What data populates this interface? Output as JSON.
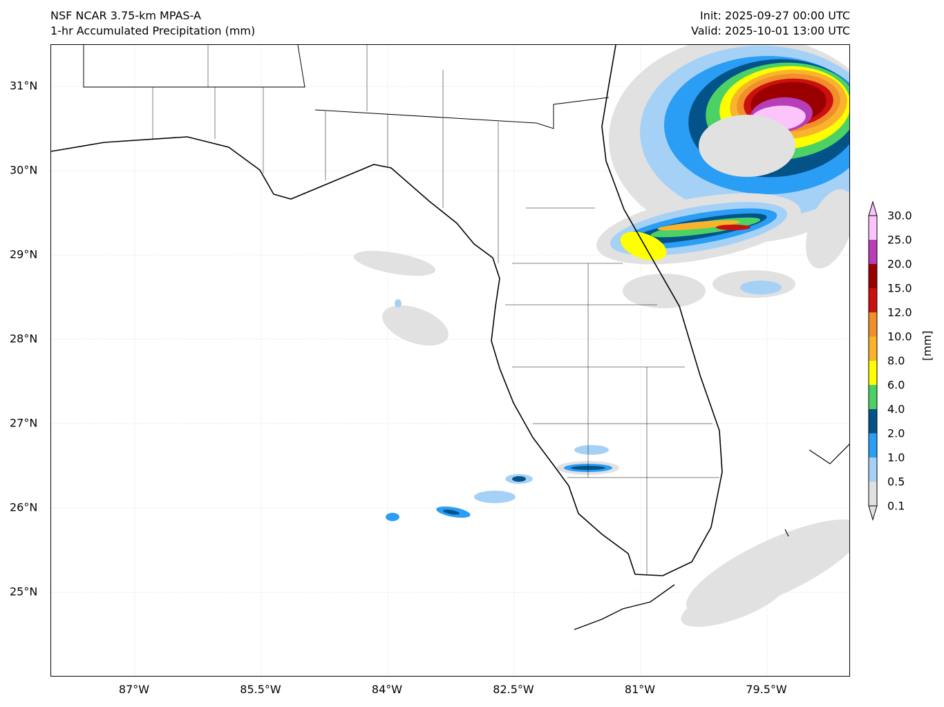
{
  "title": {
    "model": "NSF NCAR 3.75-km MPAS-A",
    "field": "1-hr Accumulated Precipitation (mm)",
    "init": "Init: 2025-09-27 00:00 UTC",
    "valid": "Valid: 2025-10-01 13:00 UTC"
  },
  "axes": {
    "lat_labels": [
      "31°N",
      "30°N",
      "29°N",
      "28°N",
      "27°N",
      "26°N",
      "25°N"
    ],
    "lon_labels": [
      "87°W",
      "85.5°W",
      "84°W",
      "82.5°W",
      "81°W",
      "79.5°W"
    ]
  },
  "colorbar": {
    "label": "[mm]",
    "ticks": [
      "0.1",
      "0.5",
      "1.0",
      "2.0",
      "4.0",
      "6.0",
      "8.0",
      "10.0",
      "12.0",
      "15.0",
      "20.0",
      "25.0",
      "30.0"
    ],
    "colors": [
      "#e1e1e1",
      "#a6d1f7",
      "#2a9df4",
      "#035388",
      "#4cd264",
      "#ffff00",
      "#f9b42c",
      "#f28f2a",
      "#cc0f0f",
      "#9a0000",
      "#b83db8",
      "#fbc4fb"
    ]
  }
}
